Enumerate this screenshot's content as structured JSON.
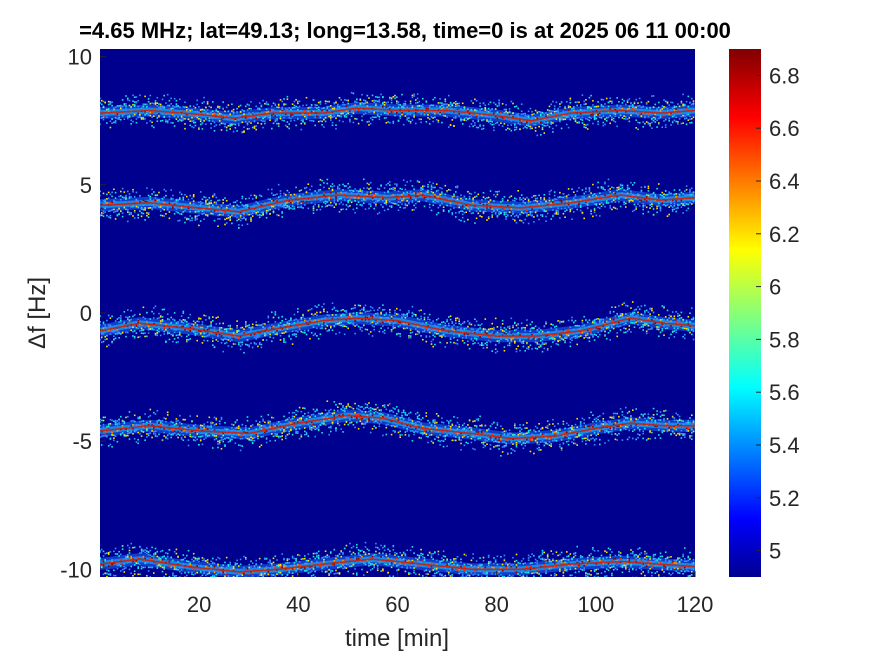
{
  "chart_data": {
    "type": "heatmap",
    "title": "=4.65 MHz;  lat=49.13; long=13.58, time=0 is at 2025 06 11 00:00",
    "xlabel": "time [min]",
    "ylabel": "Δf [Hz]",
    "xlim": [
      0,
      120
    ],
    "ylim": [
      -10.3,
      10.3
    ],
    "x_ticks": [
      20,
      40,
      60,
      80,
      100,
      120
    ],
    "x_tick_labels": [
      "20",
      "40",
      "60",
      "80",
      "100",
      "120"
    ],
    "y_ticks": [
      10,
      5,
      0,
      -5,
      -10
    ],
    "y_tick_labels": [
      "10",
      "5",
      "0",
      "-5",
      "-10"
    ],
    "colorbar": {
      "colormap": "jet",
      "limits": [
        4.9,
        6.9
      ],
      "ticks": [
        6.8,
        6.6,
        6.4,
        6.2,
        6.0,
        5.8,
        5.6,
        5.4,
        5.2,
        5.0
      ],
      "tick_labels": [
        "6.8",
        "6.6",
        "6.4",
        "6.2",
        "6",
        "5.8",
        "5.6",
        "5.4",
        "5.2",
        "5"
      ]
    },
    "background_color": "#00008f",
    "series": [
      {
        "center_hz": 7.7,
        "points": [
          [
            0,
            7.8
          ],
          [
            10,
            7.9
          ],
          [
            20,
            7.75
          ],
          [
            27,
            7.6
          ],
          [
            35,
            7.8
          ],
          [
            45,
            7.8
          ],
          [
            52,
            8.0
          ],
          [
            60,
            7.9
          ],
          [
            70,
            7.9
          ],
          [
            80,
            7.7
          ],
          [
            87,
            7.5
          ],
          [
            95,
            7.8
          ],
          [
            105,
            7.9
          ],
          [
            113,
            7.8
          ],
          [
            120,
            7.9
          ]
        ]
      },
      {
        "center_hz": 4.2,
        "points": [
          [
            0,
            4.2
          ],
          [
            10,
            4.3
          ],
          [
            20,
            4.1
          ],
          [
            28,
            3.95
          ],
          [
            38,
            4.4
          ],
          [
            48,
            4.6
          ],
          [
            58,
            4.5
          ],
          [
            65,
            4.6
          ],
          [
            75,
            4.2
          ],
          [
            85,
            4.1
          ],
          [
            95,
            4.3
          ],
          [
            105,
            4.6
          ],
          [
            113,
            4.4
          ],
          [
            120,
            4.5
          ]
        ]
      },
      {
        "center_hz": -0.5,
        "points": [
          [
            0,
            -0.7
          ],
          [
            8,
            -0.4
          ],
          [
            18,
            -0.6
          ],
          [
            28,
            -0.9
          ],
          [
            36,
            -0.6
          ],
          [
            45,
            -0.3
          ],
          [
            52,
            -0.2
          ],
          [
            60,
            -0.3
          ],
          [
            70,
            -0.7
          ],
          [
            80,
            -0.9
          ],
          [
            88,
            -0.9
          ],
          [
            97,
            -0.7
          ],
          [
            107,
            -0.2
          ],
          [
            114,
            -0.4
          ],
          [
            120,
            -0.5
          ]
        ]
      },
      {
        "center_hz": -4.6,
        "points": [
          [
            0,
            -4.6
          ],
          [
            10,
            -4.4
          ],
          [
            20,
            -4.6
          ],
          [
            30,
            -4.7
          ],
          [
            40,
            -4.3
          ],
          [
            50,
            -4.0
          ],
          [
            57,
            -4.1
          ],
          [
            65,
            -4.5
          ],
          [
            75,
            -4.7
          ],
          [
            83,
            -4.9
          ],
          [
            92,
            -4.8
          ],
          [
            100,
            -4.5
          ],
          [
            107,
            -4.3
          ],
          [
            114,
            -4.4
          ],
          [
            120,
            -4.4
          ]
        ]
      },
      {
        "center_hz": -9.8,
        "points": [
          [
            0,
            -9.8
          ],
          [
            8,
            -9.6
          ],
          [
            18,
            -9.9
          ],
          [
            28,
            -10.1
          ],
          [
            36,
            -10.0
          ],
          [
            45,
            -9.8
          ],
          [
            55,
            -9.6
          ],
          [
            65,
            -9.8
          ],
          [
            75,
            -10.0
          ],
          [
            85,
            -10.0
          ],
          [
            95,
            -9.8
          ],
          [
            105,
            -9.7
          ],
          [
            113,
            -9.8
          ],
          [
            120,
            -9.9
          ]
        ]
      }
    ]
  }
}
